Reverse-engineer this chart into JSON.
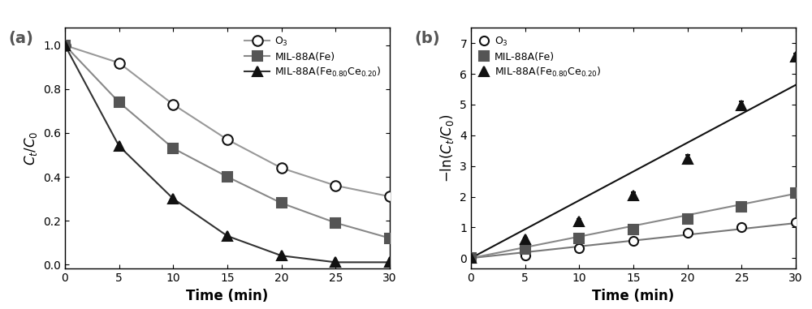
{
  "time": [
    0,
    5,
    10,
    15,
    20,
    25,
    30
  ],
  "panel_a": {
    "O3": [
      1.0,
      0.92,
      0.73,
      0.57,
      0.44,
      0.36,
      0.31
    ],
    "MIL88A_Fe": [
      1.0,
      0.74,
      0.53,
      0.4,
      0.28,
      0.19,
      0.12
    ],
    "MIL88A_FeCe": [
      1.0,
      0.54,
      0.3,
      0.13,
      0.04,
      0.01,
      0.01
    ]
  },
  "panel_b": {
    "O3": [
      0.0,
      0.08,
      0.31,
      0.56,
      0.82,
      1.02,
      1.17
    ],
    "MIL88A_Fe": [
      0.0,
      0.3,
      0.63,
      0.92,
      1.27,
      1.66,
      2.12
    ],
    "MIL88A_FeCe": [
      0.0,
      0.62,
      1.2,
      2.04,
      3.22,
      4.98,
      6.55
    ],
    "fit_O3": {
      "slope": 0.038,
      "intercept": 0.0
    },
    "fit_MIL88A_Fe": {
      "slope": 0.07,
      "intercept": 0.0
    },
    "fit_MIL88A_FeCe": {
      "slope": 0.188,
      "intercept": 0.0
    }
  },
  "xlabel": "Time (min)",
  "ylabel_a": "$C_t/C_0$",
  "ylabel_b": "$-\\ln(C_t/C_0)$",
  "label_O3": "O$_3$",
  "label_MIL88A_Fe": "MIL-88A(Fe)",
  "label_MIL88A_FeCe": "MIL-88A(Fe$_{0.80}$Ce$_{0.20}$)",
  "panel_a_label": "(a)",
  "panel_b_label": "(b)",
  "xlim": [
    0,
    30
  ],
  "ylim_a": [
    -0.02,
    1.08
  ],
  "ylim_b": [
    -0.35,
    7.5
  ],
  "yticks_a": [
    0.0,
    0.2,
    0.4,
    0.6,
    0.8,
    1.0
  ],
  "yticks_b": [
    0,
    1,
    2,
    3,
    4,
    5,
    6,
    7
  ],
  "xticks": [
    0,
    5,
    10,
    15,
    20,
    25,
    30
  ],
  "color_line_O3": "#999999",
  "color_line_MIL88A_Fe": "#888888",
  "color_line_FeCe": "#333333",
  "color_marker_O3": "#111111",
  "color_marker_MIL88A_Fe": "#555555",
  "color_marker_FeCe": "#111111",
  "color_fit_O3": "#777777",
  "color_fit_MIL88A_Fe": "#888888",
  "color_fit_FeCe": "#111111",
  "marker_O3": "o",
  "marker_MIL88A_Fe": "s",
  "marker_MIL88A_FeCe": "^",
  "markersize_a": 9,
  "markersize_b": 8,
  "linewidth": 1.5,
  "error_b_FeCe": [
    0.0,
    0.05,
    0.08,
    0.1,
    0.15,
    0.12,
    0.12
  ],
  "error_b_Fe": [
    0.0,
    0.04,
    0.05,
    0.06,
    0.08,
    0.08,
    0.1
  ],
  "error_b_O3": [
    0.0,
    0.03,
    0.04,
    0.04,
    0.05,
    0.05,
    0.06
  ]
}
